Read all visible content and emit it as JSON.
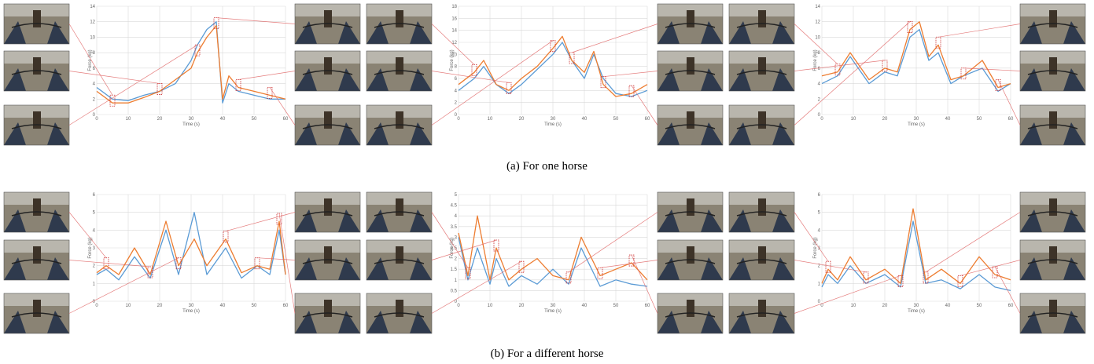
{
  "captions": {
    "top": "(a) For one horse",
    "bottom": "(b) For a different horse"
  },
  "colors": {
    "blue": "#5b9bd5",
    "orange": "#ed7d31",
    "grid": "#d9d9d9",
    "connector": "#e06666",
    "marker": "#cc3333"
  },
  "chart_data": [
    {
      "type": "line",
      "xlabel": "Time (s)",
      "ylabel": "Force (kg)",
      "xlim": [
        0,
        60
      ],
      "ylim": [
        0,
        14
      ],
      "xticks": [
        0,
        10,
        20,
        30,
        40,
        50,
        60
      ],
      "yticks": [
        0,
        2,
        4,
        6,
        8,
        10,
        12,
        14
      ],
      "x": [
        0,
        5,
        10,
        15,
        20,
        25,
        30,
        32,
        35,
        38,
        40,
        42,
        45,
        50,
        55,
        60
      ],
      "series": [
        {
          "values": [
            3.5,
            2.0,
            1.8,
            2.5,
            3.0,
            4.0,
            7.0,
            9.0,
            11.0,
            12.0,
            1.5,
            4.0,
            3.0,
            2.5,
            2.0,
            2.0
          ],
          "color": "blue"
        },
        {
          "values": [
            3.0,
            1.5,
            1.5,
            2.2,
            3.0,
            4.5,
            6.0,
            8.0,
            10.0,
            11.5,
            2.0,
            5.0,
            3.5,
            3.0,
            2.5,
            2.0
          ],
          "color": "orange"
        }
      ]
    },
    {
      "type": "line",
      "xlabel": "Time (s)",
      "ylabel": "Force (kg)",
      "xlim": [
        0,
        60
      ],
      "ylim": [
        0,
        18
      ],
      "xticks": [
        0,
        10,
        20,
        30,
        40,
        50,
        60
      ],
      "yticks": [
        0,
        2,
        4,
        6,
        8,
        10,
        12,
        14,
        16,
        18
      ],
      "x": [
        0,
        5,
        8,
        12,
        16,
        20,
        25,
        30,
        33,
        36,
        40,
        43,
        46,
        50,
        55,
        60
      ],
      "series": [
        {
          "values": [
            4.0,
            6.0,
            8.0,
            5.0,
            3.5,
            5.0,
            7.5,
            10.0,
            12.0,
            9.0,
            6.0,
            10.0,
            6.0,
            3.5,
            3.0,
            4.0
          ],
          "color": "blue"
        },
        {
          "values": [
            5.0,
            7.0,
            9.0,
            5.0,
            4.0,
            6.0,
            8.0,
            11.0,
            13.0,
            9.0,
            7.0,
            10.5,
            5.0,
            3.0,
            3.5,
            5.0
          ],
          "color": "orange"
        }
      ]
    },
    {
      "type": "line",
      "xlabel": "Time (s)",
      "ylabel": "Force (kg)",
      "xlim": [
        0,
        60
      ],
      "ylim": [
        0,
        14
      ],
      "xticks": [
        0,
        10,
        20,
        30,
        40,
        50,
        60
      ],
      "yticks": [
        0,
        2,
        4,
        6,
        8,
        10,
        12,
        14
      ],
      "x": [
        0,
        5,
        9,
        15,
        20,
        24,
        28,
        31,
        34,
        37,
        41,
        45,
        51,
        56,
        60
      ],
      "series": [
        {
          "values": [
            4.0,
            5.0,
            7.5,
            4.0,
            5.5,
            5.0,
            10.0,
            11.0,
            7.0,
            8.0,
            4.0,
            5.0,
            6.0,
            3.0,
            4.0
          ],
          "color": "blue"
        },
        {
          "values": [
            5.0,
            5.5,
            8.0,
            4.5,
            6.0,
            5.5,
            11.0,
            12.0,
            7.5,
            9.0,
            4.5,
            5.0,
            7.0,
            3.5,
            4.0
          ],
          "color": "orange"
        }
      ]
    },
    {
      "type": "line",
      "xlabel": "Time (s)",
      "ylabel": "Force (kg)",
      "xlim": [
        0,
        60
      ],
      "ylim": [
        0,
        6
      ],
      "xticks": [
        0,
        10,
        20,
        30,
        40,
        50,
        60
      ],
      "yticks": [
        0,
        1,
        2,
        3,
        4,
        5,
        6
      ],
      "x": [
        0,
        3,
        7,
        12,
        17,
        22,
        26,
        31,
        35,
        41,
        46,
        51,
        55,
        58,
        60
      ],
      "series": [
        {
          "values": [
            1.5,
            1.8,
            1.2,
            2.5,
            1.3,
            4.0,
            1.5,
            5.0,
            1.5,
            3.0,
            1.3,
            2.0,
            1.5,
            4.0,
            1.5
          ],
          "color": "blue"
        },
        {
          "values": [
            1.6,
            2.0,
            1.5,
            3.0,
            1.5,
            4.5,
            2.0,
            3.5,
            2.0,
            3.5,
            1.6,
            2.0,
            1.8,
            4.5,
            1.5
          ],
          "color": "orange"
        }
      ]
    },
    {
      "type": "line",
      "xlabel": "Time (s)",
      "ylabel": "Force (kg)",
      "xlim": [
        0,
        60
      ],
      "ylim": [
        0,
        5
      ],
      "xticks": [
        0,
        10,
        20,
        30,
        40,
        50,
        60
      ],
      "yticks": [
        0,
        0.5,
        1,
        1.5,
        2,
        2.5,
        3,
        3.5,
        4,
        4.5,
        5
      ],
      "x": [
        0,
        3,
        6,
        10,
        12,
        16,
        20,
        25,
        30,
        35,
        39,
        45,
        50,
        55,
        60
      ],
      "series": [
        {
          "values": [
            3.0,
            1.0,
            2.5,
            0.8,
            2.0,
            0.7,
            1.2,
            0.8,
            1.5,
            0.8,
            2.5,
            0.7,
            1.0,
            0.8,
            0.7
          ],
          "color": "blue"
        },
        {
          "values": [
            3.2,
            1.2,
            4.0,
            1.0,
            2.5,
            1.0,
            1.5,
            2.0,
            1.2,
            1.0,
            3.0,
            1.2,
            1.5,
            1.8,
            1.0
          ],
          "color": "orange"
        }
      ]
    },
    {
      "type": "line",
      "xlabel": "Time (s)",
      "ylabel": "Force (kg)",
      "xlim": [
        0,
        60
      ],
      "ylim": [
        0,
        6
      ],
      "xticks": [
        0,
        10,
        20,
        30,
        40,
        50,
        60
      ],
      "yticks": [
        0,
        1,
        2,
        3,
        4,
        5,
        6
      ],
      "x": [
        0,
        2,
        5,
        9,
        14,
        20,
        25,
        29,
        33,
        38,
        44,
        50,
        55,
        60
      ],
      "series": [
        {
          "values": [
            0.8,
            1.5,
            1.0,
            2.0,
            1.0,
            1.5,
            0.8,
            4.5,
            1.0,
            1.2,
            0.7,
            1.5,
            0.8,
            0.6
          ],
          "color": "blue"
        },
        {
          "values": [
            1.0,
            1.8,
            1.2,
            2.5,
            1.2,
            1.8,
            1.0,
            5.2,
            1.2,
            1.8,
            1.0,
            2.5,
            1.5,
            1.2
          ],
          "color": "orange"
        }
      ]
    }
  ]
}
